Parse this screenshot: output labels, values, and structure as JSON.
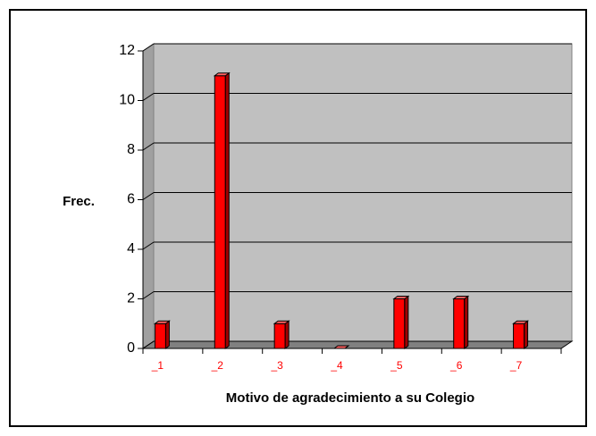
{
  "chart_data": {
    "type": "bar3d",
    "categories": [
      "_1",
      "_2",
      "_3",
      "_4",
      "_5",
      "_6",
      "_7"
    ],
    "values": [
      1,
      11,
      1,
      0,
      2,
      2,
      1
    ],
    "color": "#ff0000",
    "ylim": [
      0,
      12
    ],
    "yticks": [
      0,
      2,
      4,
      6,
      8,
      10,
      12
    ],
    "grid": true,
    "y_label": "Frec.",
    "x_label": "Motivo de agradecimiento a su Colegio"
  }
}
